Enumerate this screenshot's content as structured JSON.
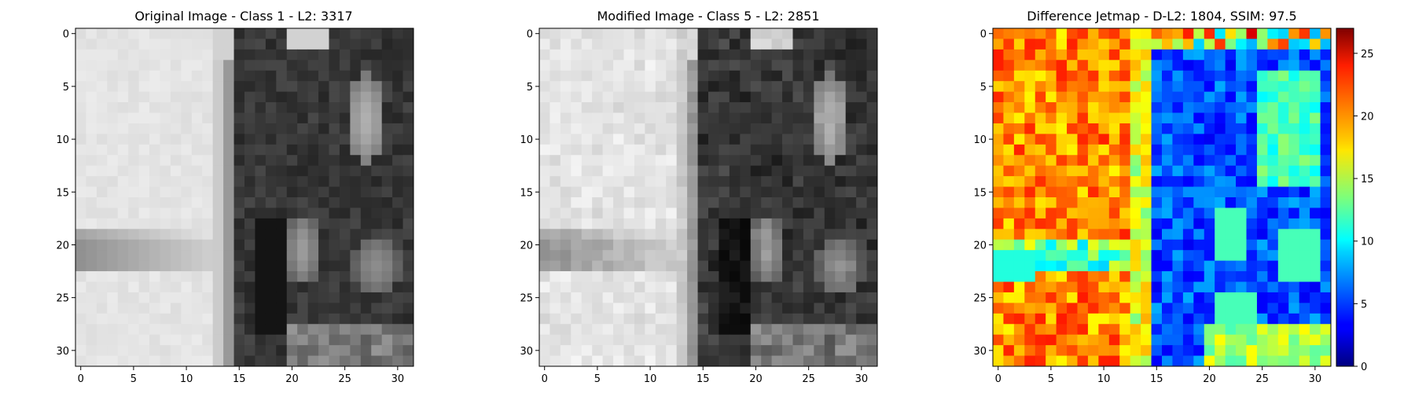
{
  "figure": {
    "background": "#ffffff"
  },
  "chart_data": [
    {
      "type": "heatmap",
      "title": "Original Image - Class 1 - L2: 3317",
      "title_color": "#000000",
      "colormap": "gray",
      "grid": false,
      "xlim": [
        -0.5,
        31.5
      ],
      "ylim": [
        31.5,
        -0.5
      ],
      "xticks": [
        0,
        5,
        10,
        15,
        20,
        25,
        30
      ],
      "yticks": [
        0,
        5,
        10,
        15,
        20,
        25,
        30
      ],
      "xtick_labels": [
        "0",
        "5",
        "10",
        "15",
        "20",
        "25",
        "30"
      ],
      "ytick_labels": [
        "0",
        "5",
        "10",
        "15",
        "20",
        "25",
        "30"
      ],
      "rows": 32,
      "cols": 32,
      "description": "approximate grayscale pixel intensities (0-255); light background on left, dark structure on right with light ovals"
    },
    {
      "type": "heatmap",
      "title": "Modified Image - Class 5 - L2: 2851",
      "title_color": "#ff0000",
      "colormap": "gray",
      "grid": false,
      "xlim": [
        -0.5,
        31.5
      ],
      "ylim": [
        31.5,
        -0.5
      ],
      "xticks": [
        0,
        5,
        10,
        15,
        20,
        25,
        30
      ],
      "yticks": [
        0,
        5,
        10,
        15,
        20,
        25,
        30
      ],
      "xtick_labels": [
        "0",
        "5",
        "10",
        "15",
        "20",
        "25",
        "30"
      ],
      "ytick_labels": [
        "0",
        "5",
        "10",
        "15",
        "20",
        "25",
        "30"
      ],
      "rows": 32,
      "cols": 32
    },
    {
      "type": "heatmap",
      "title": "Difference Jetmap - D-L2: 1804, SSIM: 97.5",
      "title_color": "#000000",
      "colormap": "jet",
      "grid": false,
      "xlim": [
        -0.5,
        31.5
      ],
      "ylim": [
        31.5,
        -0.5
      ],
      "xticks": [
        0,
        5,
        10,
        15,
        20,
        25,
        30
      ],
      "yticks": [
        0,
        5,
        10,
        15,
        20,
        25,
        30
      ],
      "xtick_labels": [
        "0",
        "5",
        "10",
        "15",
        "20",
        "25",
        "30"
      ],
      "ytick_labels": [
        "0",
        "5",
        "10",
        "15",
        "20",
        "25",
        "30"
      ],
      "rows": 32,
      "cols": 32,
      "colorbar": {
        "range": [
          0,
          27
        ],
        "ticks": [
          0,
          5,
          10,
          15,
          20,
          25
        ],
        "tick_labels": [
          "0",
          "5",
          "10",
          "15",
          "20",
          "25"
        ]
      }
    }
  ]
}
